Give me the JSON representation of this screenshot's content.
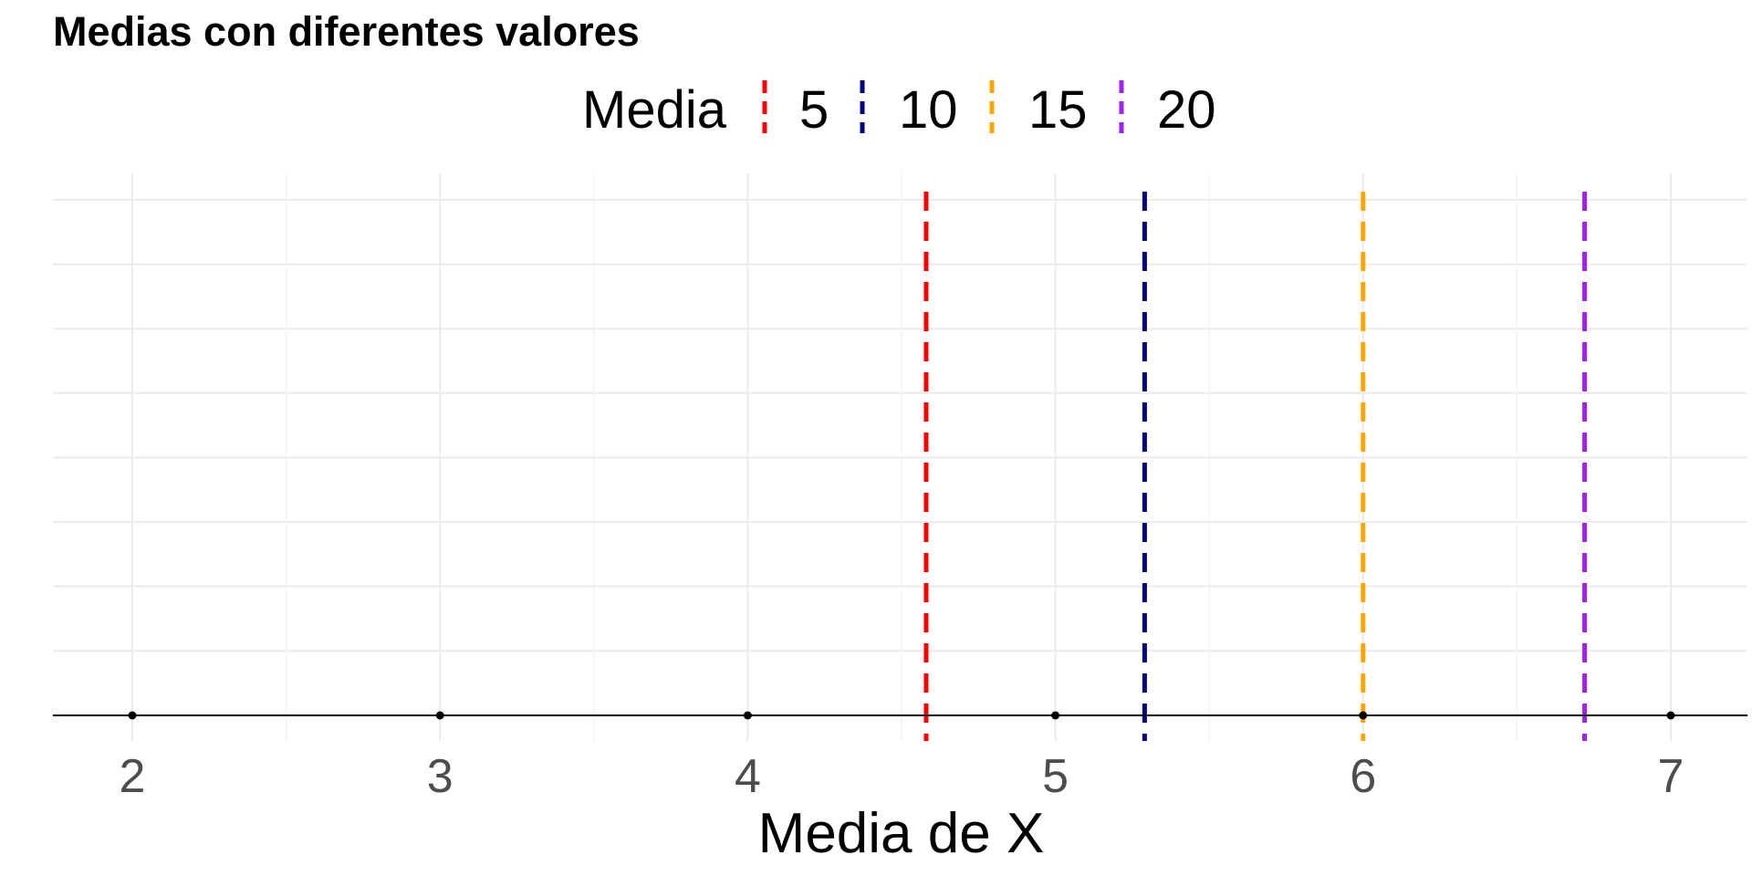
{
  "chart_data": {
    "type": "line",
    "title": "Medias con diferentes valores",
    "xlabel": "Media de X",
    "ylabel": "",
    "xlim": [
      1.75,
      7.25
    ],
    "xticks": [
      "2",
      "3",
      "4",
      "5",
      "6",
      "7"
    ],
    "xtick_values": [
      2,
      3,
      4,
      5,
      6,
      7
    ],
    "points": [
      {
        "x": 2,
        "y": 0
      },
      {
        "x": 3,
        "y": 0
      },
      {
        "x": 4,
        "y": 0
      },
      {
        "x": 5,
        "y": 0
      },
      {
        "x": 6,
        "y": 0
      },
      {
        "x": 7,
        "y": 0
      }
    ],
    "legend": {
      "title": "Media",
      "placement": "top"
    },
    "series": [
      {
        "name": "5",
        "x": 4.58,
        "color": "#ff0000",
        "style": "dashed vertical line"
      },
      {
        "name": "10",
        "x": 5.29,
        "color": "#000080",
        "style": "dashed vertical line"
      },
      {
        "name": "15",
        "x": 6.0,
        "color": "#ffa500",
        "style": "dashed vertical line"
      },
      {
        "name": "20",
        "x": 6.72,
        "color": "#a020f0",
        "style": "dashed vertical line"
      }
    ],
    "grid": true
  }
}
